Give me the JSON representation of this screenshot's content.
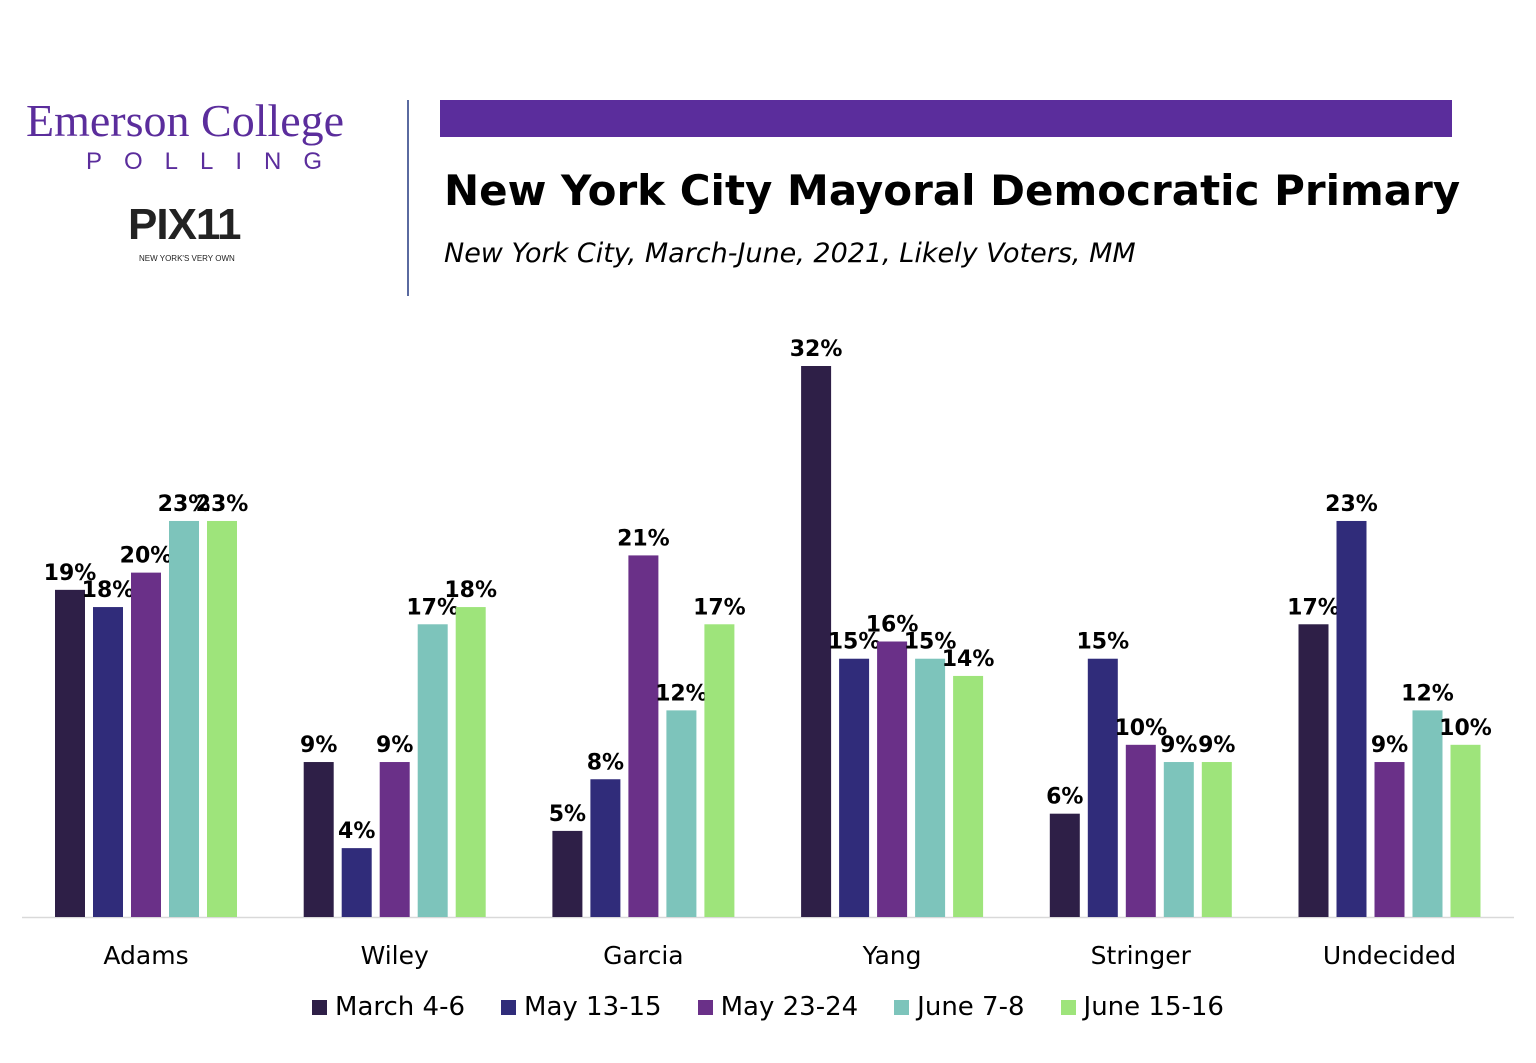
{
  "logo": {
    "line1": "Emerson College",
    "line2": "POLLING",
    "partner": "PIX11",
    "partner_tagline": "NEW YORK'S VERY OWN"
  },
  "header": {
    "title": "New York City Mayoral Democratic Primary",
    "subtitle": "New York City, March-June, 2021, Likely Voters, MM"
  },
  "colors": {
    "accent": "#5b2d9c"
  },
  "chart_data": {
    "type": "bar",
    "title": "New York City Mayoral Democratic Primary",
    "subtitle": "New York City, March-June, 2021, Likely Voters, MM",
    "categories": [
      "Adams",
      "Wiley",
      "Garcia",
      "Yang",
      "Stringer",
      "Undecided"
    ],
    "series": [
      {
        "name": "March 4-6",
        "color": "#2e1f47",
        "values": [
          19,
          9,
          5,
          32,
          6,
          17
        ]
      },
      {
        "name": "May 13-15",
        "color": "#302c7a",
        "values": [
          18,
          4,
          8,
          15,
          15,
          23
        ]
      },
      {
        "name": "May 23-24",
        "color": "#6a3088",
        "values": [
          20,
          9,
          21,
          16,
          10,
          9
        ]
      },
      {
        "name": "June 7-8",
        "color": "#7dc4bb",
        "values": [
          23,
          17,
          12,
          15,
          9,
          12
        ]
      },
      {
        "name": "June 15-16",
        "color": "#9ee47b",
        "values": [
          23,
          18,
          17,
          14,
          9,
          10
        ]
      }
    ],
    "value_suffix": "%",
    "ylim": [
      0,
      32
    ],
    "grid": false,
    "legend": "bottom"
  }
}
